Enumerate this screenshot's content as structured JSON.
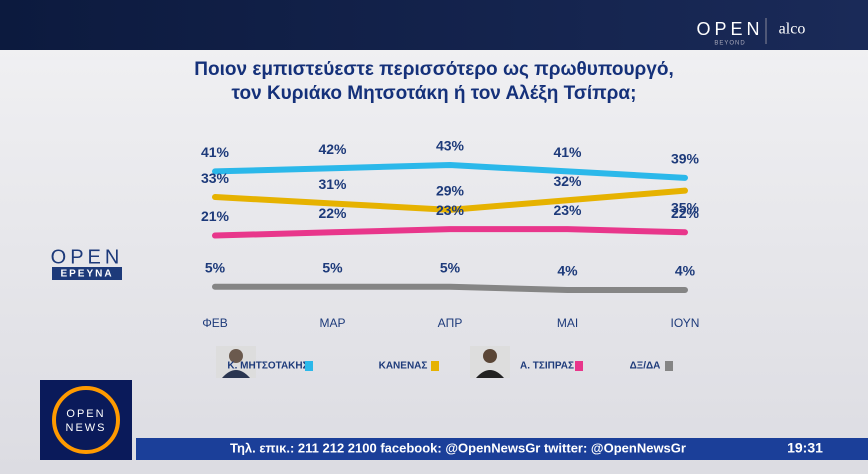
{
  "chart_data": {
    "type": "line",
    "title": [
      "Ποιον εμπιστεύεστε περισσότερο ως πρωθυπουργό,",
      "τον Κυριάκο Μητσοτάκη ή τον Αλέξη Τσίπρα;"
    ],
    "categories": [
      "ΦΕΒ",
      "ΜΑΡ",
      "ΑΠΡ",
      "ΜΑΙ",
      "ΙΟΥΝ"
    ],
    "series": [
      {
        "name": "Κ. ΜΗΤΣΟΤΑΚΗΣ",
        "color": "#2bb8ea",
        "values": [
          41,
          42,
          43,
          41,
          39
        ],
        "value_labels": [
          "41%",
          "42%",
          "43%",
          "41%",
          "39%"
        ]
      },
      {
        "name": "ΚΑΝΕΝΑΣ",
        "color": "#e6b200",
        "values": [
          33,
          31,
          29,
          32,
          35
        ],
        "value_labels": [
          "33%",
          "31%",
          "29%",
          "32%",
          "35%"
        ]
      },
      {
        "name": "Α. ΤΣΙΠΡΑΣ",
        "color": "#e8368b",
        "values": [
          21,
          22,
          23,
          23,
          22
        ],
        "value_labels": [
          "21%",
          "22%",
          "23%",
          "23%",
          "22%"
        ]
      },
      {
        "name": "ΔΞ/ΔΑ",
        "color": "#858585",
        "values": [
          5,
          5,
          5,
          4,
          4
        ],
        "value_labels": [
          "5%",
          "5%",
          "5%",
          "4%",
          "4%"
        ]
      }
    ]
  },
  "branding": {
    "open": "OPEN",
    "beyond": "BEYOND",
    "alco": "alco",
    "open_erevna": "OPEN",
    "erevna": "ΕΡΕΥΝΑ",
    "news_open": "OPEN",
    "news": "NEWS"
  },
  "ticker": {
    "text": "Τηλ. επικ.: 211 212 2100 facebook: @OpenNewsGr twitter: @OpenNewsGr",
    "time": "19:31"
  }
}
